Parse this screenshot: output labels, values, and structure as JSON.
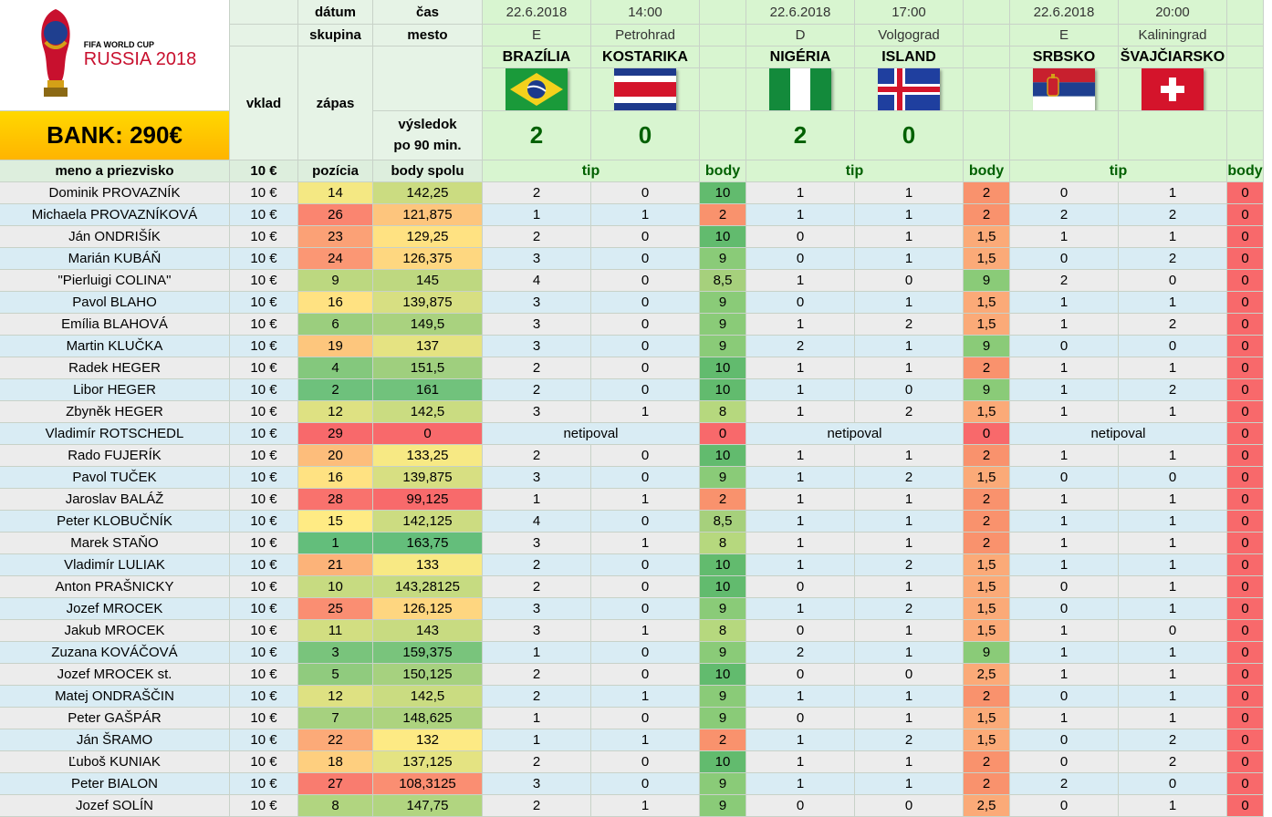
{
  "logo": {
    "line1": "FIFA WORLD CUP",
    "line2": "RUSSIA 2018"
  },
  "bank": "BANK: 290€",
  "headers": {
    "datum": "dátum",
    "skupina": "skupina",
    "cas": "čas",
    "mesto": "mesto",
    "vklad": "vklad",
    "zapas": "zápas",
    "vysledok1": "výsledok",
    "vysledok2": "po 90 min.",
    "meno": "meno a priezvisko",
    "vklad_val": "10 €",
    "pozicia": "pozícia",
    "body_spolu": "body spolu",
    "tip": "tip",
    "body": "body"
  },
  "matches": [
    {
      "date": "22.6.2018",
      "time": "14:00",
      "group": "E",
      "city": "Petrohrad",
      "home": "BRAZÍLIA",
      "away": "KOSTARIKA",
      "home_flag": "brazil-flag",
      "away_flag": "costa-rica-flag",
      "home_score": "2",
      "away_score": "0"
    },
    {
      "date": "22.6.2018",
      "time": "17:00",
      "group": "D",
      "city": "Volgograd",
      "home": "NIGÉRIA",
      "away": "ISLAND",
      "home_flag": "nigeria-flag",
      "away_flag": "iceland-flag",
      "home_score": "2",
      "away_score": "0"
    },
    {
      "date": "22.6.2018",
      "time": "20:00",
      "group": "E",
      "city": "Kaliningrad",
      "home": "SRBSKO",
      "away": "ŠVAJČIARSKO",
      "home_flag": "serbia-flag",
      "away_flag": "switzerland-flag",
      "home_score": "",
      "away_score": ""
    }
  ],
  "players": [
    {
      "name": "Dominik PROVAZNÍK",
      "vklad": "10 €",
      "pos": "14",
      "total": "142,25",
      "m": [
        [
          "2",
          "0",
          "10"
        ],
        [
          "1",
          "1",
          "2"
        ],
        [
          "0",
          "1",
          "0"
        ]
      ]
    },
    {
      "name": "Michaela PROVAZNÍKOVÁ",
      "vklad": "10 €",
      "pos": "26",
      "total": "121,875",
      "m": [
        [
          "1",
          "1",
          "2"
        ],
        [
          "1",
          "1",
          "2"
        ],
        [
          "2",
          "2",
          "0"
        ]
      ]
    },
    {
      "name": "Ján ONDRIŠÍK",
      "vklad": "10 €",
      "pos": "23",
      "total": "129,25",
      "m": [
        [
          "2",
          "0",
          "10"
        ],
        [
          "0",
          "1",
          "1,5"
        ],
        [
          "1",
          "1",
          "0"
        ]
      ]
    },
    {
      "name": "Marián KUBÁŇ",
      "vklad": "10 €",
      "pos": "24",
      "total": "126,375",
      "m": [
        [
          "3",
          "0",
          "9"
        ],
        [
          "0",
          "1",
          "1,5"
        ],
        [
          "0",
          "2",
          "0"
        ]
      ]
    },
    {
      "name": "\"Pierluigi COLINA\"",
      "vklad": "10 €",
      "pos": "9",
      "total": "145",
      "m": [
        [
          "4",
          "0",
          "8,5"
        ],
        [
          "1",
          "0",
          "9"
        ],
        [
          "2",
          "0",
          "0"
        ]
      ]
    },
    {
      "name": "Pavol BLAHO",
      "vklad": "10 €",
      "pos": "16",
      "total": "139,875",
      "m": [
        [
          "3",
          "0",
          "9"
        ],
        [
          "0",
          "1",
          "1,5"
        ],
        [
          "1",
          "1",
          "0"
        ]
      ]
    },
    {
      "name": "Emília BLAHOVÁ",
      "vklad": "10 €",
      "pos": "6",
      "total": "149,5",
      "m": [
        [
          "3",
          "0",
          "9"
        ],
        [
          "1",
          "2",
          "1,5"
        ],
        [
          "1",
          "2",
          "0"
        ]
      ]
    },
    {
      "name": "Martin KLUČKA",
      "vklad": "10 €",
      "pos": "19",
      "total": "137",
      "m": [
        [
          "3",
          "0",
          "9"
        ],
        [
          "2",
          "1",
          "9"
        ],
        [
          "0",
          "0",
          "0"
        ]
      ]
    },
    {
      "name": "Radek HEGER",
      "vklad": "10 €",
      "pos": "4",
      "total": "151,5",
      "m": [
        [
          "2",
          "0",
          "10"
        ],
        [
          "1",
          "1",
          "2"
        ],
        [
          "1",
          "1",
          "0"
        ]
      ]
    },
    {
      "name": "Libor HEGER",
      "vklad": "10 €",
      "pos": "2",
      "total": "161",
      "m": [
        [
          "2",
          "0",
          "10"
        ],
        [
          "1",
          "0",
          "9"
        ],
        [
          "1",
          "2",
          "0"
        ]
      ]
    },
    {
      "name": "Zbyněk HEGER",
      "vklad": "10 €",
      "pos": "12",
      "total": "142,5",
      "m": [
        [
          "3",
          "1",
          "8"
        ],
        [
          "1",
          "2",
          "1,5"
        ],
        [
          "1",
          "1",
          "0"
        ]
      ]
    },
    {
      "name": "Vladimír ROTSCHEDL",
      "vklad": "10 €",
      "pos": "29",
      "total": "0",
      "netipoval": "netipoval",
      "m": [
        [
          "",
          "",
          "0"
        ],
        [
          "",
          "",
          "0"
        ],
        [
          "",
          "",
          "0"
        ]
      ]
    },
    {
      "name": "Rado FUJERÍK",
      "vklad": "10 €",
      "pos": "20",
      "total": "133,25",
      "m": [
        [
          "2",
          "0",
          "10"
        ],
        [
          "1",
          "1",
          "2"
        ],
        [
          "1",
          "1",
          "0"
        ]
      ]
    },
    {
      "name": "Pavol TUČEK",
      "vklad": "10 €",
      "pos": "16",
      "total": "139,875",
      "m": [
        [
          "3",
          "0",
          "9"
        ],
        [
          "1",
          "2",
          "1,5"
        ],
        [
          "0",
          "0",
          "0"
        ]
      ]
    },
    {
      "name": "Jaroslav BALÁŽ",
      "vklad": "10 €",
      "pos": "28",
      "total": "99,125",
      "m": [
        [
          "1",
          "1",
          "2"
        ],
        [
          "1",
          "1",
          "2"
        ],
        [
          "1",
          "1",
          "0"
        ]
      ]
    },
    {
      "name": "Peter KLOBUČNÍK",
      "vklad": "10 €",
      "pos": "15",
      "total": "142,125",
      "m": [
        [
          "4",
          "0",
          "8,5"
        ],
        [
          "1",
          "1",
          "2"
        ],
        [
          "1",
          "1",
          "0"
        ]
      ]
    },
    {
      "name": "Marek STAŇO",
      "vklad": "10 €",
      "pos": "1",
      "total": "163,75",
      "m": [
        [
          "3",
          "1",
          "8"
        ],
        [
          "1",
          "1",
          "2"
        ],
        [
          "1",
          "1",
          "0"
        ]
      ]
    },
    {
      "name": "Vladimír LULIAK",
      "vklad": "10 €",
      "pos": "21",
      "total": "133",
      "m": [
        [
          "2",
          "0",
          "10"
        ],
        [
          "1",
          "2",
          "1,5"
        ],
        [
          "1",
          "1",
          "0"
        ]
      ]
    },
    {
      "name": "Anton PRAŠNICKY",
      "vklad": "10 €",
      "pos": "10",
      "total": "143,28125",
      "m": [
        [
          "2",
          "0",
          "10"
        ],
        [
          "0",
          "1",
          "1,5"
        ],
        [
          "0",
          "1",
          "0"
        ]
      ]
    },
    {
      "name": "Jozef MROCEK",
      "vklad": "10 €",
      "pos": "25",
      "total": "126,125",
      "m": [
        [
          "3",
          "0",
          "9"
        ],
        [
          "1",
          "2",
          "1,5"
        ],
        [
          "0",
          "1",
          "0"
        ]
      ]
    },
    {
      "name": "Jakub MROCEK",
      "vklad": "10 €",
      "pos": "11",
      "total": "143",
      "m": [
        [
          "3",
          "1",
          "8"
        ],
        [
          "0",
          "1",
          "1,5"
        ],
        [
          "1",
          "0",
          "0"
        ]
      ]
    },
    {
      "name": "Zuzana KOVÁČOVÁ",
      "vklad": "10 €",
      "pos": "3",
      "total": "159,375",
      "m": [
        [
          "1",
          "0",
          "9"
        ],
        [
          "2",
          "1",
          "9"
        ],
        [
          "1",
          "1",
          "0"
        ]
      ]
    },
    {
      "name": "Jozef MROCEK st.",
      "vklad": "10 €",
      "pos": "5",
      "total": "150,125",
      "m": [
        [
          "2",
          "0",
          "10"
        ],
        [
          "0",
          "0",
          "2,5"
        ],
        [
          "1",
          "1",
          "0"
        ]
      ]
    },
    {
      "name": "Matej ONDRAŠČIN",
      "vklad": "10 €",
      "pos": "12",
      "total": "142,5",
      "m": [
        [
          "2",
          "1",
          "9"
        ],
        [
          "1",
          "1",
          "2"
        ],
        [
          "0",
          "1",
          "0"
        ]
      ]
    },
    {
      "name": "Peter GAŠPÁR",
      "vklad": "10 €",
      "pos": "7",
      "total": "148,625",
      "m": [
        [
          "1",
          "0",
          "9"
        ],
        [
          "0",
          "1",
          "1,5"
        ],
        [
          "1",
          "1",
          "0"
        ]
      ]
    },
    {
      "name": "Ján ŠRAMO",
      "vklad": "10 €",
      "pos": "22",
      "total": "132",
      "m": [
        [
          "1",
          "1",
          "2"
        ],
        [
          "1",
          "2",
          "1,5"
        ],
        [
          "0",
          "2",
          "0"
        ]
      ]
    },
    {
      "name": "Ľuboš KUNIAK",
      "vklad": "10 €",
      "pos": "18",
      "total": "137,125",
      "m": [
        [
          "2",
          "0",
          "10"
        ],
        [
          "1",
          "1",
          "2"
        ],
        [
          "0",
          "2",
          "0"
        ]
      ]
    },
    {
      "name": "Peter BIALON",
      "vklad": "10 €",
      "pos": "27",
      "total": "108,3125",
      "m": [
        [
          "3",
          "0",
          "9"
        ],
        [
          "1",
          "1",
          "2"
        ],
        [
          "2",
          "0",
          "0"
        ]
      ]
    },
    {
      "name": "Jozef SOLÍN",
      "vklad": "10 €",
      "pos": "8",
      "total": "147,75",
      "m": [
        [
          "2",
          "1",
          "9"
        ],
        [
          "0",
          "0",
          "2,5"
        ],
        [
          "0",
          "1",
          "0"
        ]
      ]
    }
  ],
  "colors": {
    "header_green": "#006000",
    "row_gray": "#ececec",
    "row_blue": "#d9ecf4",
    "bank_yellow": "#ffd800"
  }
}
